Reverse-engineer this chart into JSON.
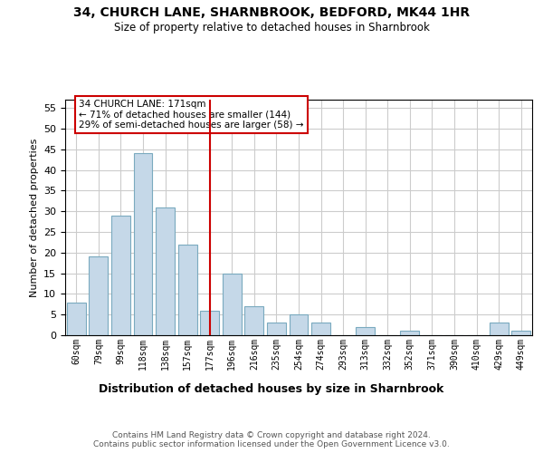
{
  "title": "34, CHURCH LANE, SHARNBROOK, BEDFORD, MK44 1HR",
  "subtitle": "Size of property relative to detached houses in Sharnbrook",
  "xlabel": "Distribution of detached houses by size in Sharnbrook",
  "ylabel": "Number of detached properties",
  "categories": [
    "60sqm",
    "79sqm",
    "99sqm",
    "118sqm",
    "138sqm",
    "157sqm",
    "177sqm",
    "196sqm",
    "216sqm",
    "235sqm",
    "254sqm",
    "274sqm",
    "293sqm",
    "313sqm",
    "332sqm",
    "352sqm",
    "371sqm",
    "390sqm",
    "410sqm",
    "429sqm",
    "449sqm"
  ],
  "values": [
    8,
    19,
    29,
    44,
    31,
    22,
    6,
    15,
    7,
    3,
    5,
    3,
    0,
    2,
    0,
    1,
    0,
    0,
    0,
    3,
    1
  ],
  "bar_color": "#c5d8e8",
  "bar_edge_color": "#7aaabf",
  "highlight_index": 6,
  "highlight_line_color": "#cc0000",
  "annotation_text": "34 CHURCH LANE: 171sqm\n← 71% of detached houses are smaller (144)\n29% of semi-detached houses are larger (58) →",
  "annotation_box_color": "#ffffff",
  "annotation_box_edge_color": "#cc0000",
  "ylim": [
    0,
    57
  ],
  "yticks": [
    0,
    5,
    10,
    15,
    20,
    25,
    30,
    35,
    40,
    45,
    50,
    55
  ],
  "footer_text": "Contains HM Land Registry data © Crown copyright and database right 2024.\nContains public sector information licensed under the Open Government Licence v3.0.",
  "background_color": "#ffffff",
  "grid_color": "#cccccc"
}
